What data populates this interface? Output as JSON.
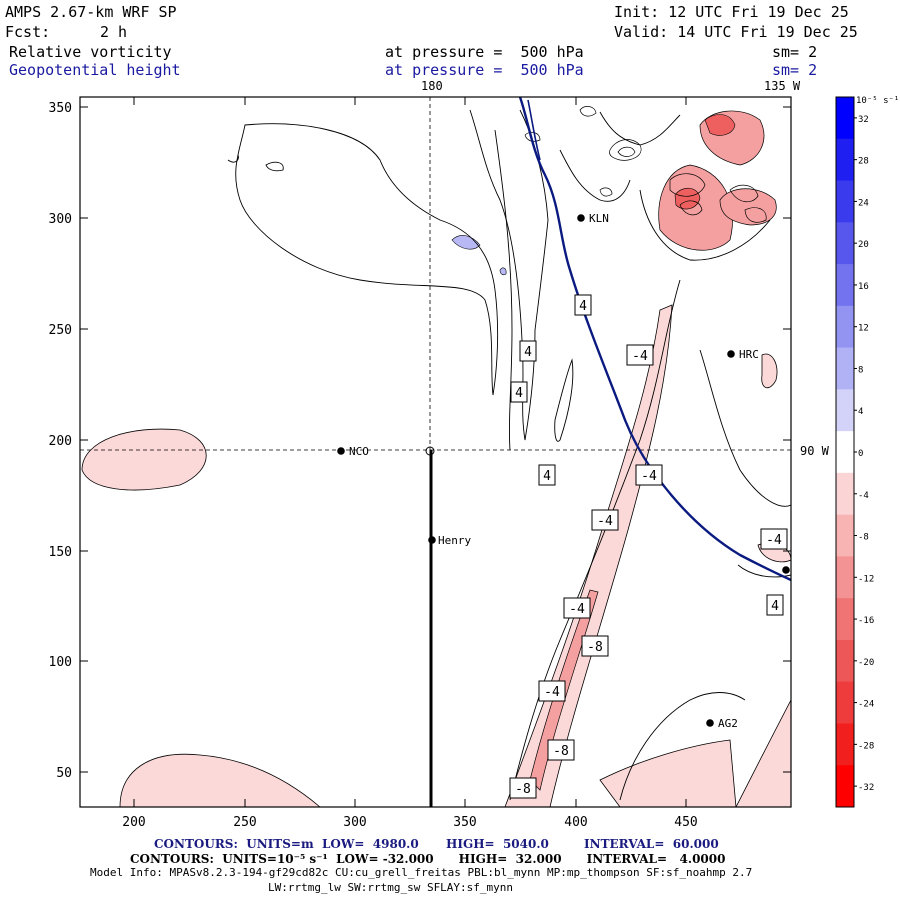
{
  "header": {
    "model": "AMPS 2.67-km WRF SP",
    "init": "Init: 12 UTC Fri 19 Dec 25",
    "fcst_label": "Fcst:",
    "fcst_value": "2 h",
    "valid": "Valid: 14 UTC Fri 19 Dec 25"
  },
  "fields": [
    {
      "name": "Relative vorticity",
      "level": "at pressure =  500 hPa",
      "smooth": "sm= 2"
    },
    {
      "name": "Geopotential height",
      "level": "at pressure =  500 hPa",
      "smooth": "sm= 2"
    }
  ],
  "graticule": {
    "lon_180": "180",
    "lon_135w": "135 W",
    "lat_90w": "90 W"
  },
  "axes": {
    "x_ticks": [
      "200",
      "250",
      "300",
      "350",
      "400",
      "450"
    ],
    "y_ticks": [
      "50",
      "100",
      "150",
      "200",
      "250",
      "300",
      "350"
    ]
  },
  "stations": [
    {
      "id": "KLN"
    },
    {
      "id": "HRC"
    },
    {
      "id": "NCO"
    },
    {
      "id": "Henry"
    },
    {
      "id": "AG2"
    },
    {
      "id": ""
    }
  ],
  "contour_labels": [
    "4",
    "4",
    "4",
    "4",
    "-4",
    "-4",
    "-4",
    "-4",
    "-8",
    "-4",
    "-8",
    "-8",
    "-4",
    "4"
  ],
  "colorbar": {
    "units": "10⁻⁵ s⁻¹",
    "levels": [
      "32",
      "28",
      "24",
      "20",
      "16",
      "12",
      "8",
      "4",
      "0",
      "-4",
      "-8",
      "-12",
      "-16",
      "-20",
      "-24",
      "-28",
      "-32"
    ],
    "colors": [
      "#0000ff",
      "#1f1ff2",
      "#3b3bee",
      "#5757ee",
      "#7373f0",
      "#9393f2",
      "#b1b1f6",
      "#d3d3fa",
      "#ffffff",
      "#fbd5d5",
      "#f8b3b3",
      "#f49393",
      "#f07474",
      "#ee5757",
      "#ee3b3b",
      "#f21f1f",
      "#ff0000"
    ]
  },
  "footer": {
    "line1_contours": "CONTOURS:  UNITS=m  LOW=  4980.0",
    "line1_high": "HIGH=  5040.0",
    "line1_interval": "INTERVAL=  60.000",
    "line2": "CONTOURS:  UNITS=10⁻⁵ s⁻¹  LOW= -32.000      HIGH=  32.000      INTERVAL=   4.0000",
    "line3": "Model Info: MPASv8.2.3-194-gf29cd82c CU:cu_grell_freitas PBL:bl_mynn MP:mp_thompson SF:sf_noahmp 2.7",
    "line4": "LW:rrtmg_lw SW:rrtmg_sw SFLAY:sf_mynn"
  }
}
